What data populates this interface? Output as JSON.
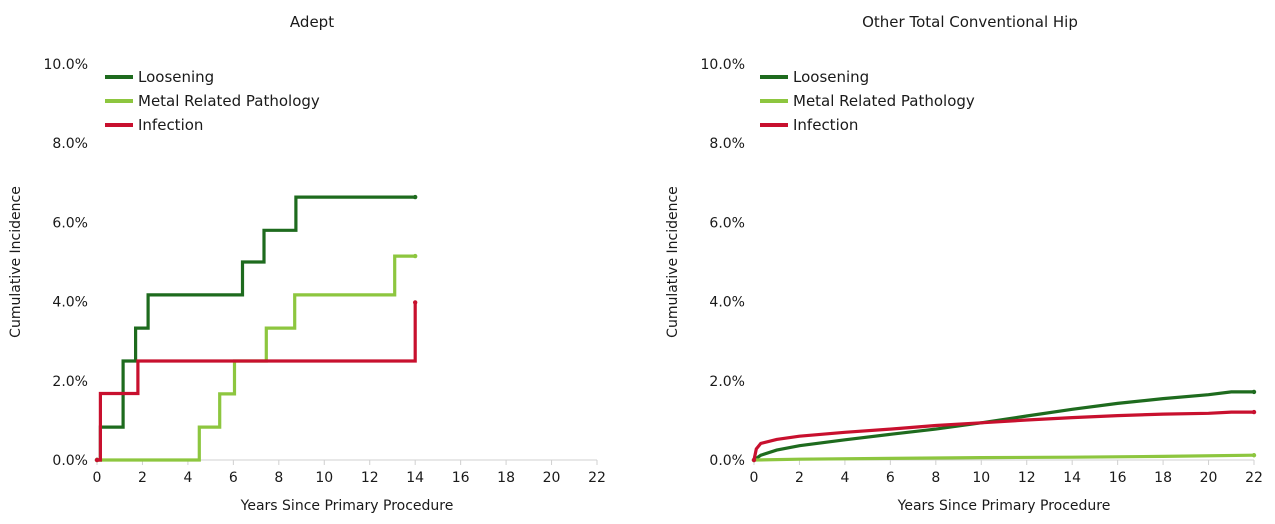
{
  "chart_data": [
    {
      "type": "line",
      "step": true,
      "title": "Adept",
      "xlabel": "Years Since Primary Procedure",
      "ylabel": "Cumulative Incidence",
      "xlim": [
        0,
        22
      ],
      "ylim": [
        0,
        0.1
      ],
      "x_ticks": [
        "0",
        "2",
        "4",
        "6",
        "8",
        "10",
        "12",
        "14",
        "16",
        "18",
        "20",
        "22"
      ],
      "y_ticks": [
        "0.0%",
        "2.0%",
        "4.0%",
        "6.0%",
        "8.0%",
        "10.0%"
      ],
      "grid": false,
      "legend_position": "top-left",
      "series": [
        {
          "name": "Loosening",
          "color": "#1e6b1e",
          "points": [
            [
              0,
              0
            ],
            [
              0.15,
              0
            ],
            [
              0.15,
              0.0083
            ],
            [
              1.15,
              0.0083
            ],
            [
              1.15,
              0.025
            ],
            [
              1.7,
              0.025
            ],
            [
              1.7,
              0.0333
            ],
            [
              2.25,
              0.0333
            ],
            [
              2.25,
              0.0417
            ],
            [
              6.4,
              0.0417
            ],
            [
              6.4,
              0.05
            ],
            [
              7.35,
              0.05
            ],
            [
              7.35,
              0.058
            ],
            [
              8.75,
              0.058
            ],
            [
              8.75,
              0.0664
            ],
            [
              14.0,
              0.0664
            ]
          ]
        },
        {
          "name": "Metal Related Pathology",
          "color": "#8dc63f",
          "points": [
            [
              0,
              0
            ],
            [
              4.5,
              0
            ],
            [
              4.5,
              0.0083
            ],
            [
              5.4,
              0.0083
            ],
            [
              5.4,
              0.0167
            ],
            [
              6.05,
              0.0167
            ],
            [
              6.05,
              0.025
            ],
            [
              7.45,
              0.025
            ],
            [
              7.45,
              0.0333
            ],
            [
              8.7,
              0.0333
            ],
            [
              8.7,
              0.0417
            ],
            [
              13.1,
              0.0417
            ],
            [
              13.1,
              0.0515
            ],
            [
              14.0,
              0.0515
            ]
          ]
        },
        {
          "name": "Infection",
          "color": "#c8102e",
          "points": [
            [
              0,
              0
            ],
            [
              0.15,
              0
            ],
            [
              0.15,
              0.0168
            ],
            [
              1.8,
              0.0168
            ],
            [
              1.8,
              0.025
            ],
            [
              14.0,
              0.025
            ],
            [
              14.0,
              0.0398
            ]
          ]
        }
      ]
    },
    {
      "type": "line",
      "step": false,
      "title": "Other Total Conventional Hip",
      "xlabel": "Years Since Primary Procedure",
      "ylabel": "Cumulative Incidence",
      "xlim": [
        0,
        22
      ],
      "ylim": [
        0,
        0.1
      ],
      "x_ticks": [
        "0",
        "2",
        "4",
        "6",
        "8",
        "10",
        "12",
        "14",
        "16",
        "18",
        "20",
        "22"
      ],
      "y_ticks": [
        "0.0%",
        "2.0%",
        "4.0%",
        "6.0%",
        "8.0%",
        "10.0%"
      ],
      "grid": false,
      "legend_position": "top-left",
      "series": [
        {
          "name": "Loosening",
          "color": "#1e6b1e",
          "points": [
            [
              0,
              0.0
            ],
            [
              0.3,
              0.0012
            ],
            [
              1,
              0.0025
            ],
            [
              2,
              0.0036
            ],
            [
              4,
              0.0051
            ],
            [
              6,
              0.0065
            ],
            [
              8,
              0.0078
            ],
            [
              10,
              0.0094
            ],
            [
              12,
              0.0111
            ],
            [
              14,
              0.0128
            ],
            [
              16,
              0.0143
            ],
            [
              18,
              0.0155
            ],
            [
              20,
              0.0165
            ],
            [
              21,
              0.0172
            ],
            [
              22,
              0.0172
            ]
          ]
        },
        {
          "name": "Metal Related Pathology",
          "color": "#8dc63f",
          "points": [
            [
              0,
              0.0
            ],
            [
              2,
              0.0002
            ],
            [
              6,
              0.0004
            ],
            [
              10,
              0.0006
            ],
            [
              14,
              0.0007
            ],
            [
              18,
              0.0009
            ],
            [
              22,
              0.0012
            ]
          ]
        },
        {
          "name": "Infection",
          "color": "#c8102e",
          "points": [
            [
              0,
              0.0
            ],
            [
              0.1,
              0.0028
            ],
            [
              0.3,
              0.0042
            ],
            [
              1,
              0.0052
            ],
            [
              2,
              0.006
            ],
            [
              4,
              0.007
            ],
            [
              6,
              0.0078
            ],
            [
              8,
              0.0087
            ],
            [
              10,
              0.0094
            ],
            [
              12,
              0.0101
            ],
            [
              14,
              0.0107
            ],
            [
              16,
              0.0112
            ],
            [
              18,
              0.0116
            ],
            [
              20,
              0.0118
            ],
            [
              21,
              0.0121
            ],
            [
              22,
              0.0121
            ]
          ]
        }
      ]
    }
  ]
}
